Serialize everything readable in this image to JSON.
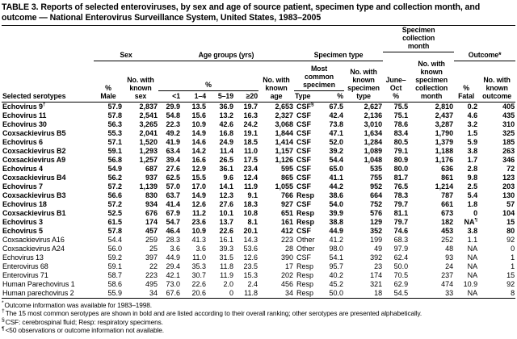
{
  "title": "TABLE 3. Reports of selected enteroviruses, by sex and age of source patient, specimen type and collection month, and outcome — National Enterovirus Surveillance System, United States, 1983–2005",
  "colors": {
    "text": "#000000",
    "background": "#ffffff",
    "rule": "#000000"
  },
  "table": {
    "group_headers": {
      "sex": "Sex",
      "age_groups": "Age groups (yrs)",
      "age_pct": "%",
      "specimen_type": "Specimen type",
      "most_common_specimen": "Most\ncommon\nspecimen",
      "specimen_collection_month": "Specimen\ncollection\nmonth",
      "outcome": "Outcome*"
    },
    "col_headers": {
      "serotype": "Selected serotypes",
      "pct_male": "%\nMale",
      "no_known_sex": "No. with\nknown\nsex",
      "age_lt1": "<1",
      "age_1_4": "1–4",
      "age_5_19": "5–19",
      "age_ge20": "≥20",
      "no_known_age": "No. with\nknown\nage",
      "specimen_type": "Type",
      "specimen_pct": "%",
      "no_known_specimen_type": "No. with\nknown\nspecimen\ntype",
      "june_oct_pct": "June–\nOct\n%",
      "no_known_collection_month": "No. with\nknown\nspecimen\ncollection\nmonth",
      "pct_fatal": "%\nFatal",
      "no_known_outcome": "No. with\nknown\noutcome"
    },
    "column_keys": [
      "serotype",
      "pct_male",
      "no_known_sex",
      "age_lt1",
      "age_1_4",
      "age_5_19",
      "age_ge20",
      "no_known_age",
      "specimen_type",
      "specimen_pct",
      "no_known_specimen_type",
      "june_oct_pct",
      "no_known_collection_month",
      "pct_fatal",
      "no_known_outcome"
    ],
    "rows": [
      {
        "bold": true,
        "cells": [
          "Echovirus 9†",
          "57.9",
          "2,837",
          "29.9",
          "13.5",
          "36.9",
          "19.7",
          "2,653",
          "CSF§",
          "67.5",
          "2,627",
          "75.5",
          "2,810",
          "0.2",
          "405"
        ]
      },
      {
        "bold": true,
        "cells": [
          "Echovirus 11",
          "57.8",
          "2,541",
          "54.8",
          "15.6",
          "13.2",
          "16.3",
          "2,327",
          "CSF",
          "42.4",
          "2,136",
          "75.1",
          "2,437",
          "4.6",
          "435"
        ]
      },
      {
        "bold": true,
        "cells": [
          "Echovirus 30",
          "56.3",
          "3,265",
          "22.3",
          "10.9",
          "42.6",
          "24.2",
          "3,068",
          "CSF",
          "73.8",
          "3,010",
          "78.6",
          "3,287",
          "3.2",
          "310"
        ]
      },
      {
        "bold": true,
        "cells": [
          "Coxsackievirus B5",
          "55.3",
          "2,041",
          "49.2",
          "14.9",
          "16.8",
          "19.1",
          "1,844",
          "CSF",
          "47.1",
          "1,634",
          "83.4",
          "1,790",
          "1.5",
          "325"
        ]
      },
      {
        "bold": true,
        "cells": [
          "Echovirus 6",
          "57.1",
          "1,520",
          "41.9",
          "14.6",
          "24.9",
          "18.5",
          "1,414",
          "CSF",
          "52.0",
          "1,284",
          "80.5",
          "1,379",
          "5.9",
          "185"
        ]
      },
      {
        "bold": true,
        "cells": [
          "Coxsackievirus B2",
          "59.1",
          "1,293",
          "63.4",
          "14.2",
          "11.4",
          "11.0",
          "1,157",
          "CSF",
          "39.2",
          "1,089",
          "79.1",
          "1,188",
          "3.8",
          "263"
        ]
      },
      {
        "bold": true,
        "cells": [
          "Coxsackievirus A9",
          "56.8",
          "1,257",
          "39.4",
          "16.6",
          "26.5",
          "17.5",
          "1,126",
          "CSF",
          "54.4",
          "1,048",
          "80.9",
          "1,176",
          "1.7",
          "346"
        ]
      },
      {
        "bold": true,
        "cells": [
          "Echovirus 4",
          "54.9",
          "687",
          "27.6",
          "12.9",
          "36.1",
          "23.4",
          "595",
          "CSF",
          "65.0",
          "535",
          "80.0",
          "636",
          "2.8",
          "72"
        ]
      },
      {
        "bold": true,
        "cells": [
          "Coxsackievirus B4",
          "56.2",
          "937",
          "62.5",
          "15.5",
          "9.6",
          "12.4",
          "865",
          "CSF",
          "41.1",
          "755",
          "81.7",
          "861",
          "9.8",
          "123"
        ]
      },
      {
        "bold": true,
        "cells": [
          "Echovirus 7",
          "57.2",
          "1,139",
          "57.0",
          "17.0",
          "14.1",
          "11.9",
          "1,055",
          "CSF",
          "44.2",
          "952",
          "76.5",
          "1,214",
          "2.5",
          "203"
        ]
      },
      {
        "bold": true,
        "cells": [
          "Coxsackievirus B3",
          "56.6",
          "830",
          "63.7",
          "14.9",
          "12.3",
          "9.1",
          "766",
          "Resp",
          "38.6",
          "664",
          "78.3",
          "787",
          "5.4",
          "130"
        ]
      },
      {
        "bold": true,
        "cells": [
          "Echovirus 18",
          "57.2",
          "934",
          "41.4",
          "12.6",
          "27.6",
          "18.3",
          "927",
          "CSF",
          "54.0",
          "752",
          "79.7",
          "661",
          "1.8",
          "57"
        ]
      },
      {
        "bold": true,
        "cells": [
          "Coxsackievirus B1",
          "52.5",
          "676",
          "67.9",
          "11.2",
          "10.1",
          "10.8",
          "651",
          "Resp",
          "39.9",
          "576",
          "81.1",
          "673",
          "0",
          "104"
        ]
      },
      {
        "bold": true,
        "cells": [
          "Echovirus 3",
          "61.5",
          "174",
          "54.7",
          "23.6",
          "13.7",
          "8.1",
          "161",
          "Resp",
          "38.8",
          "129",
          "79.7",
          "182",
          "NA¶",
          "15"
        ]
      },
      {
        "bold": true,
        "cells": [
          "Echovirus 5",
          "57.8",
          "457",
          "46.4",
          "10.9",
          "22.6",
          "20.1",
          "412",
          "CSF",
          "44.9",
          "352",
          "74.6",
          "453",
          "3.8",
          "80"
        ]
      },
      {
        "bold": false,
        "cells": [
          "Coxsackievirus A16",
          "54.4",
          "259",
          "28.3",
          "41.3",
          "16.1",
          "14.3",
          "223",
          "Other",
          "41.2",
          "199",
          "68.3",
          "252",
          "1.1",
          "92"
        ]
      },
      {
        "bold": false,
        "cells": [
          "Coxsackievirus A24",
          "56.0",
          "25",
          "3.6",
          "3.6",
          "39.3",
          "53.6",
          "28",
          "Other",
          "98.0",
          "49",
          "97.9",
          "48",
          "NA",
          "0"
        ]
      },
      {
        "bold": false,
        "cells": [
          "Echovirus 13",
          "59.2",
          "397",
          "44.9",
          "11.0",
          "31.5",
          "12.6",
          "390",
          "CSF",
          "54.1",
          "392",
          "62.4",
          "93",
          "NA",
          "1"
        ]
      },
      {
        "bold": false,
        "cells": [
          "Enterovirus 68",
          "59.1",
          "22",
          "29.4",
          "35.3",
          "11.8",
          "23.5",
          "17",
          "Resp",
          "95.7",
          "23",
          "50.0",
          "24",
          "NA",
          "1"
        ]
      },
      {
        "bold": false,
        "cells": [
          "Enterovirus 71",
          "58.7",
          "223",
          "42.1",
          "30.7",
          "11.9",
          "15.3",
          "202",
          "Resp",
          "40.2",
          "174",
          "70.5",
          "237",
          "NA",
          "15"
        ]
      },
      {
        "bold": false,
        "cells": [
          "Human Parechovirus 1",
          "58.6",
          "495",
          "73.0",
          "22.6",
          "2.0",
          "2.4",
          "456",
          "Resp",
          "45.2",
          "321",
          "62.9",
          "474",
          "10.9",
          "92"
        ]
      },
      {
        "bold": false,
        "cells": [
          "Human parechovirus 2",
          "55.9",
          "34",
          "67.6",
          "20.6",
          "0",
          "11.8",
          "34",
          "Resp",
          "50.0",
          "18",
          "54.5",
          "33",
          "NA",
          "8"
        ]
      }
    ]
  },
  "footnotes": [
    {
      "symbol": "*",
      "text": "Outcome information was available for 1983–1998."
    },
    {
      "symbol": "†",
      "text": "The 15 most common serotypes are shown in bold and are listed according to their overall ranking; other serotypes are presented alphabetically."
    },
    {
      "symbol": "§",
      "text": "CSF: cerebrospinal fluid; Resp: respiratory specimens."
    },
    {
      "symbol": "¶",
      "text": "<50 observations or outcome information not available."
    }
  ]
}
